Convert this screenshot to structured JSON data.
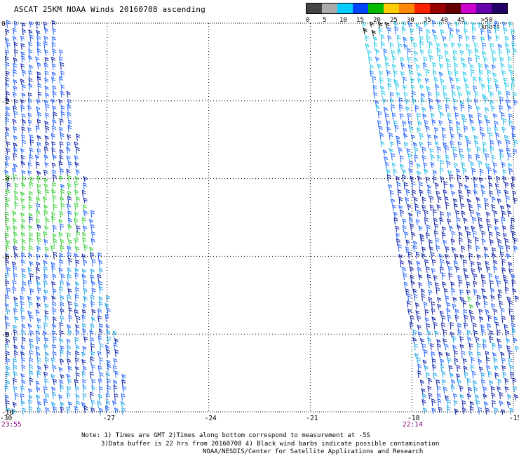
{
  "title": "ASCAT 25KM NOAA Winds 20160708 ascending",
  "colorbar": {
    "labels": [
      "0",
      "5",
      "10",
      "15",
      "20",
      "25",
      "30",
      "35",
      "40",
      "45",
      ">50 knots"
    ],
    "colors": [
      "#444444",
      "#aaaaaa",
      "#00ccff",
      "#0044ff",
      "#00bb00",
      "#ffcc00",
      "#ff8800",
      "#ff2200",
      "#990000",
      "#660000",
      "#cc00cc",
      "#6600aa",
      "#220066"
    ]
  },
  "axes": {
    "x_ticks": [
      "-30",
      "-27",
      "-24",
      "-21",
      "-18",
      "-15"
    ],
    "y_ticks": [
      "0",
      "-2",
      "-4",
      "-6",
      "-8",
      "-10"
    ]
  },
  "swath_times": {
    "left": "23:55",
    "right": "22:14"
  },
  "notes": [
    "Note: 1) Times are GMT 2)Times along bottom correspond to measurement at -5S",
    "3)Data buffer is 22 hrs from 20160708 4) Black wind barbs indicate possible contamination",
    "NOAA/NESDIS/Center for Satellite Applications and Research"
  ],
  "chart_data": {
    "type": "wind-barb-map",
    "xlim": [
      -30,
      -15
    ],
    "ylim": [
      -10,
      0
    ],
    "grid": true,
    "swaths": [
      {
        "time": "23:55",
        "lon_range": [
          -30,
          -26.5
        ],
        "predominant_speed_knots": "15-20",
        "higher_speed_region": "lat -4 to -6.5, speed 20"
      },
      {
        "time": "22:14",
        "lon_range": [
          -19.7,
          -15
        ],
        "predominant_speed_knots": "10-15"
      }
    ]
  }
}
